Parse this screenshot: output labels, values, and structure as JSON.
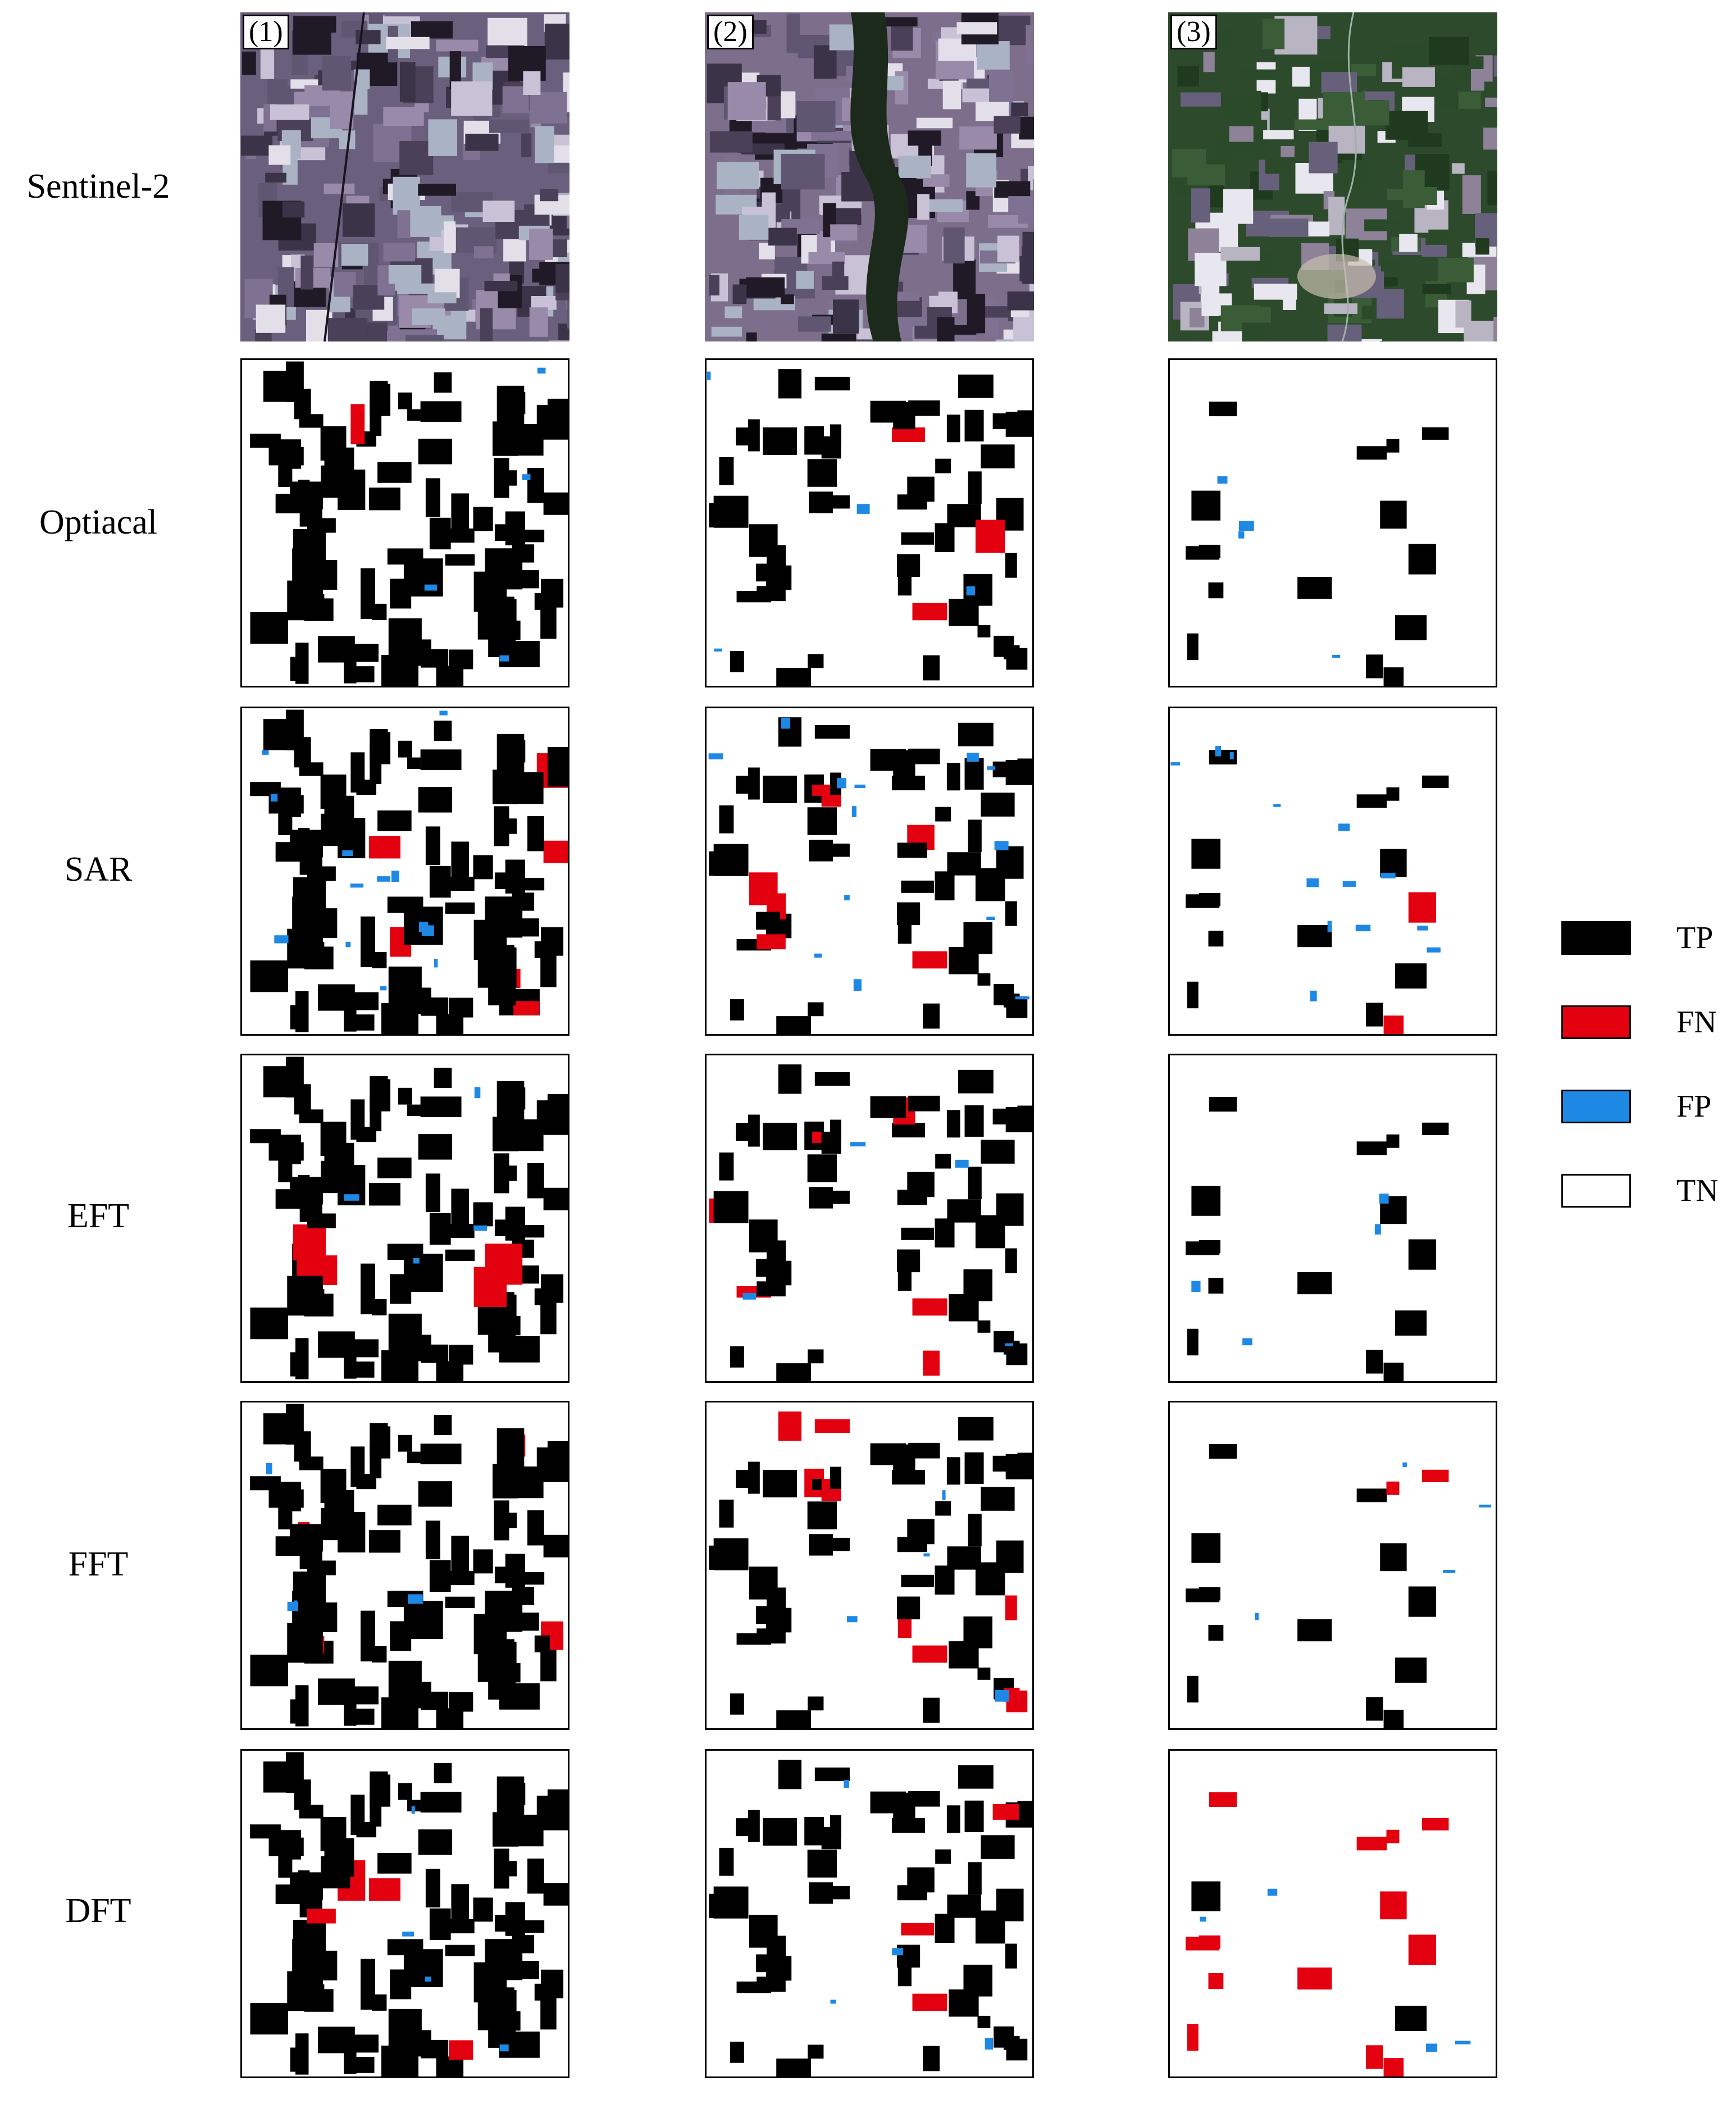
{
  "rows": [
    {
      "label": "Sentinel-2"
    },
    {
      "label": "Optiacal"
    },
    {
      "label": "SAR"
    },
    {
      "label": "EFT"
    },
    {
      "label": "FFT"
    },
    {
      "label": "DFT"
    }
  ],
  "columns": [
    {
      "label": "(1)"
    },
    {
      "label": "(2)"
    },
    {
      "label": "(3)"
    }
  ],
  "legend": [
    {
      "label": "TP",
      "color": "#000000"
    },
    {
      "label": "FN",
      "color": "#e3000f"
    },
    {
      "label": "FP",
      "color": "#1e88e5"
    },
    {
      "label": "TN",
      "color": "#ffffff"
    }
  ]
}
